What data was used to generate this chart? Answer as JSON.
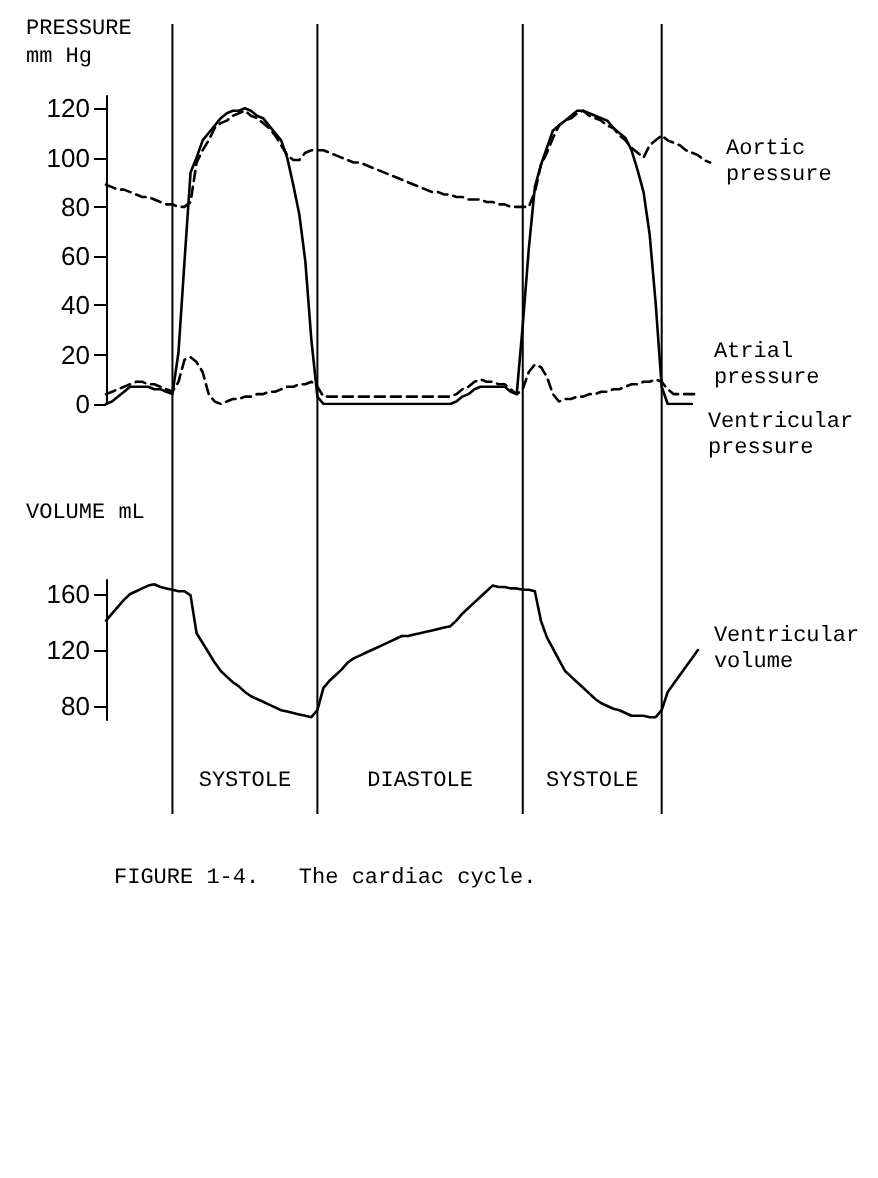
{
  "chart_data": [
    {
      "type": "line",
      "ylabel": "PRESSURE mm Hg",
      "categories": [
        null,
        null,
        null,
        null,
        null,
        null,
        null,
        null,
        null,
        null,
        null,
        null,
        null,
        null,
        null,
        null,
        null,
        null,
        null,
        null,
        null,
        null,
        null,
        null,
        null,
        null,
        null,
        null,
        null,
        null,
        null,
        null,
        null,
        null,
        null,
        null,
        null,
        null,
        null,
        null,
        null,
        null,
        null,
        null,
        null,
        null,
        null,
        null,
        null,
        null,
        null,
        null,
        null,
        null,
        null,
        null,
        null,
        null,
        null,
        null,
        null,
        null,
        null,
        null,
        null,
        null,
        null,
        null,
        null,
        null,
        null,
        null,
        null,
        null,
        null,
        null,
        null,
        null,
        null,
        null,
        null,
        null,
        null,
        null,
        null,
        null,
        null,
        null,
        null,
        null,
        null,
        null,
        null,
        null,
        null,
        null,
        null,
        null,
        null,
        null,
        null
      ],
      "ylim": [
        0,
        125
      ],
      "yticks": [
        0,
        20,
        40,
        60,
        80,
        100,
        120
      ],
      "tick_labels": "y",
      "marker": "none",
      "grid": "x",
      "series": [
        {
          "name": "Aortic pressure",
          "color": "#000000",
          "line_style": "dashed",
          "values": [
            89,
            88,
            87,
            87,
            86,
            85,
            84,
            84,
            83,
            82,
            81,
            81,
            80,
            80,
            82,
            98,
            103,
            107,
            112,
            114,
            115,
            117,
            118,
            119,
            117,
            116,
            114,
            112,
            109,
            105,
            101,
            99,
            99,
            102,
            103,
            103,
            103,
            102,
            101,
            100,
            99,
            98,
            98,
            97,
            96,
            95,
            94,
            93,
            92,
            91,
            90,
            89,
            88,
            87,
            86,
            86,
            85,
            85,
            84,
            84,
            83,
            83,
            83,
            82,
            82,
            81,
            81,
            80,
            80,
            80,
            80,
            86,
            97,
            102,
            108,
            113,
            115,
            116,
            118,
            119,
            117,
            116,
            115,
            113,
            112,
            109,
            107,
            104,
            102,
            100,
            105,
            107,
            109,
            107,
            106,
            105,
            103,
            102,
            101,
            99,
            98
          ]
        },
        {
          "name": "Atrial pressure",
          "color": "#000000",
          "line_style": "dashed",
          "values": [
            4,
            5,
            6,
            7,
            8,
            9,
            9,
            8,
            8,
            7,
            6,
            5,
            9,
            18,
            19,
            17,
            13,
            4,
            1,
            0,
            1,
            2,
            2,
            3,
            3,
            4,
            4,
            5,
            5,
            6,
            7,
            7,
            8,
            8,
            9,
            7,
            3,
            3,
            3,
            3,
            3,
            3,
            3,
            3,
            3,
            3,
            3,
            3,
            3,
            3,
            3,
            3,
            3,
            3,
            3,
            3,
            3,
            3,
            4,
            6,
            7,
            9,
            10,
            9,
            9,
            8,
            8,
            6,
            4,
            6,
            13,
            16,
            15,
            11,
            4,
            1,
            2,
            2,
            3,
            3,
            4,
            4,
            5,
            5,
            6,
            6,
            7,
            8,
            8,
            9,
            9,
            10,
            9,
            6,
            4,
            4,
            4,
            4,
            4,
            null,
            null
          ]
        },
        {
          "name": "Ventricular pressure",
          "color": "#000000",
          "line_style": "solid",
          "values": [
            0,
            1,
            3,
            5,
            7,
            7,
            7,
            7,
            6,
            6,
            5,
            4,
            21,
            58,
            94,
            100,
            107,
            110,
            113,
            116,
            118,
            119,
            119,
            120,
            119,
            117,
            116,
            113,
            110,
            107,
            100,
            89,
            77,
            58,
            26,
            3,
            0,
            0,
            0,
            0,
            0,
            0,
            0,
            0,
            0,
            0,
            0,
            0,
            0,
            0,
            0,
            0,
            0,
            0,
            0,
            0,
            0,
            0,
            1,
            3,
            4,
            6,
            7,
            7,
            7,
            7,
            7,
            5,
            4,
            32,
            63,
            88,
            97,
            104,
            111,
            113,
            115,
            117,
            119,
            119,
            118,
            117,
            116,
            115,
            112,
            110,
            108,
            103,
            95,
            86,
            69,
            41,
            7,
            0,
            0,
            0,
            0,
            0,
            null,
            null,
            null
          ]
        }
      ]
    },
    {
      "type": "line",
      "ylabel": "VOLUME mL",
      "categories": [
        null,
        null,
        null,
        null,
        null,
        null,
        null,
        null,
        null,
        null,
        null,
        null,
        null,
        null,
        null,
        null,
        null,
        null,
        null,
        null,
        null,
        null,
        null,
        null,
        null,
        null,
        null,
        null,
        null,
        null,
        null,
        null,
        null,
        null,
        null,
        null,
        null,
        null,
        null,
        null,
        null,
        null,
        null,
        null,
        null,
        null,
        null,
        null,
        null,
        null,
        null,
        null,
        null,
        null,
        null,
        null,
        null,
        null,
        null,
        null,
        null,
        null,
        null,
        null,
        null,
        null,
        null,
        null,
        null,
        null,
        null,
        null,
        null,
        null,
        null,
        null,
        null,
        null,
        null,
        null,
        null,
        null,
        null,
        null,
        null,
        null,
        null,
        null,
        null,
        null,
        null,
        null,
        null,
        null,
        null,
        null,
        null,
        null,
        null,
        null,
        null
      ],
      "ylim": [
        70,
        170
      ],
      "yticks": [
        80,
        120,
        160
      ],
      "tick_labels": "y",
      "marker": "none",
      "grid": "x",
      "annotations": [
        "SYSTOLE",
        "DIASTOLE",
        "SYSTOLE",
        "FIGURE 1-4.   The cardiac cycle."
      ],
      "series": [
        {
          "name": "Ventricular volume",
          "color": "#000000",
          "line_style": "solid",
          "values": [
            141,
            146,
            151,
            156,
            160,
            162,
            164,
            166,
            167,
            165,
            164,
            163,
            162,
            162,
            159,
            132,
            125,
            118,
            111,
            105,
            101,
            97,
            94,
            90,
            87,
            85,
            83,
            81,
            79,
            77,
            76,
            75,
            74,
            73,
            72,
            77,
            93,
            98,
            102,
            106,
            111,
            114,
            116,
            118,
            120,
            122,
            124,
            126,
            128,
            130,
            130,
            131,
            132,
            133,
            134,
            135,
            136,
            137,
            141,
            146,
            150,
            154,
            158,
            162,
            166,
            165,
            165,
            164,
            164,
            163,
            163,
            162,
            141,
            129,
            121,
            113,
            105,
            101,
            97,
            93,
            89,
            85,
            82,
            80,
            78,
            77,
            75,
            73,
            73,
            73,
            72,
            72,
            77,
            90,
            96,
            102,
            108,
            114,
            120,
            null,
            null
          ]
        }
      ]
    }
  ]
}
